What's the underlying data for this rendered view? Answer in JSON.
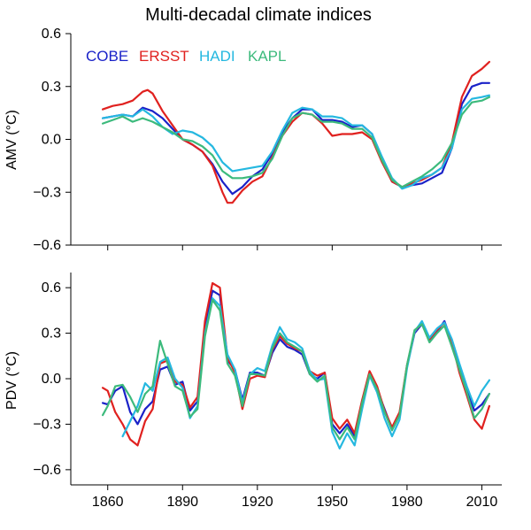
{
  "chart_data": {
    "title": "Multi-decadal climate indices",
    "type": "line",
    "legend_placement": "top-left",
    "grid": false,
    "colors": {
      "COBE": "#1a22c8",
      "ERSST": "#e0211f",
      "HADI": "#25b8e0",
      "KAPL": "#3cba7c"
    },
    "xlim": [
      1853,
      2018
    ],
    "xticks": [
      1860,
      1890,
      1920,
      1950,
      1980,
      2010
    ],
    "xticklabels": [
      "1860",
      "1890",
      "1920",
      "1950",
      "1980",
      "2010"
    ],
    "panels": [
      {
        "ylabel": "AMV (°C)",
        "ylim": [
          -0.6,
          0.6
        ],
        "yticks": [
          0.6,
          0.3,
          0.0,
          -0.3,
          -0.6
        ],
        "yticklabels": [
          "0.6",
          "0.3",
          "0.0",
          "−0.3",
          "−0.6"
        ],
        "series": [
          {
            "name": "COBE",
            "x": [
              1858,
              1862,
              1866,
              1870,
              1874,
              1878,
              1882,
              1886,
              1890,
              1894,
              1898,
              1902,
              1906,
              1910,
              1914,
              1918,
              1922,
              1926,
              1930,
              1934,
              1938,
              1942,
              1946,
              1950,
              1954,
              1958,
              1962,
              1966,
              1970,
              1974,
              1978,
              1982,
              1986,
              1990,
              1994,
              1998,
              2002,
              2006,
              2010,
              2013
            ],
            "y": [
              0.12,
              0.13,
              0.14,
              0.13,
              0.18,
              0.16,
              0.12,
              0.06,
              0.0,
              -0.03,
              -0.07,
              -0.14,
              -0.24,
              -0.31,
              -0.27,
              -0.21,
              -0.17,
              -0.08,
              0.04,
              0.12,
              0.17,
              0.17,
              0.11,
              0.11,
              0.1,
              0.07,
              0.08,
              0.03,
              -0.12,
              -0.24,
              -0.27,
              -0.26,
              -0.25,
              -0.22,
              -0.19,
              -0.05,
              0.2,
              0.3,
              0.32,
              0.32
            ]
          },
          {
            "name": "ERSST",
            "x": [
              1858,
              1862,
              1866,
              1870,
              1874,
              1876,
              1878,
              1882,
              1886,
              1890,
              1894,
              1898,
              1902,
              1906,
              1908,
              1910,
              1914,
              1918,
              1922,
              1926,
              1930,
              1934,
              1938,
              1942,
              1946,
              1950,
              1954,
              1958,
              1962,
              1966,
              1970,
              1974,
              1978,
              1982,
              1986,
              1990,
              1994,
              1998,
              2002,
              2006,
              2010,
              2013
            ],
            "y": [
              0.17,
              0.19,
              0.2,
              0.22,
              0.27,
              0.28,
              0.26,
              0.16,
              0.08,
              0.0,
              -0.03,
              -0.07,
              -0.15,
              -0.3,
              -0.36,
              -0.36,
              -0.29,
              -0.24,
              -0.21,
              -0.1,
              0.02,
              0.1,
              0.15,
              0.14,
              0.09,
              0.02,
              0.03,
              0.03,
              0.04,
              0.0,
              -0.13,
              -0.24,
              -0.27,
              -0.25,
              -0.23,
              -0.2,
              -0.16,
              -0.02,
              0.24,
              0.36,
              0.4,
              0.44
            ]
          },
          {
            "name": "HADI",
            "x": [
              1858,
              1862,
              1866,
              1870,
              1874,
              1878,
              1882,
              1886,
              1890,
              1894,
              1898,
              1902,
              1906,
              1910,
              1914,
              1918,
              1922,
              1926,
              1930,
              1934,
              1938,
              1942,
              1946,
              1950,
              1954,
              1958,
              1962,
              1966,
              1970,
              1974,
              1978,
              1982,
              1986,
              1990,
              1994,
              1998,
              2002,
              2006,
              2010,
              2013
            ],
            "y": [
              0.12,
              0.13,
              0.14,
              0.13,
              0.17,
              0.13,
              0.07,
              0.03,
              0.05,
              0.04,
              0.01,
              -0.04,
              -0.13,
              -0.18,
              -0.17,
              -0.16,
              -0.15,
              -0.07,
              0.05,
              0.15,
              0.18,
              0.17,
              0.13,
              0.13,
              0.12,
              0.08,
              0.08,
              0.03,
              -0.1,
              -0.22,
              -0.28,
              -0.26,
              -0.22,
              -0.2,
              -0.16,
              -0.05,
              0.17,
              0.23,
              0.24,
              0.25
            ]
          },
          {
            "name": "KAPL",
            "x": [
              1858,
              1862,
              1866,
              1870,
              1874,
              1878,
              1882,
              1886,
              1890,
              1894,
              1898,
              1902,
              1906,
              1910,
              1914,
              1918,
              1922,
              1926,
              1930,
              1934,
              1938,
              1942,
              1946,
              1950,
              1954,
              1958,
              1962,
              1966,
              1970,
              1974,
              1978,
              1982,
              1986,
              1990,
              1994,
              1998,
              2002,
              2006,
              2010,
              2013
            ],
            "y": [
              0.09,
              0.11,
              0.13,
              0.1,
              0.12,
              0.1,
              0.07,
              0.04,
              0.0,
              -0.01,
              -0.04,
              -0.09,
              -0.18,
              -0.22,
              -0.22,
              -0.21,
              -0.19,
              -0.11,
              0.02,
              0.12,
              0.15,
              0.14,
              0.1,
              0.1,
              0.09,
              0.06,
              0.06,
              0.01,
              -0.12,
              -0.23,
              -0.27,
              -0.24,
              -0.21,
              -0.17,
              -0.12,
              -0.02,
              0.14,
              0.21,
              0.22,
              0.24
            ]
          }
        ]
      },
      {
        "ylabel": "PDV (°C)",
        "ylim": [
          -0.7,
          0.7
        ],
        "yticks": [
          0.6,
          0.3,
          0.0,
          -0.3,
          -0.6
        ],
        "yticklabels": [
          "0.6",
          "0.3",
          "0.0",
          "−0.3",
          "−0.6"
        ],
        "series": [
          {
            "name": "COBE",
            "x": [
              1858,
              1860,
              1863,
              1866,
              1869,
              1872,
              1875,
              1878,
              1881,
              1884,
              1887,
              1890,
              1893,
              1896,
              1899,
              1902,
              1905,
              1908,
              1911,
              1914,
              1917,
              1920,
              1923,
              1926,
              1929,
              1932,
              1935,
              1938,
              1941,
              1944,
              1947,
              1950,
              1953,
              1956,
              1959,
              1962,
              1965,
              1968,
              1971,
              1974,
              1977,
              1980,
              1983,
              1986,
              1989,
              1992,
              1995,
              1998,
              2001,
              2004,
              2007,
              2010,
              2013
            ],
            "y": [
              -0.16,
              -0.17,
              -0.08,
              -0.05,
              -0.22,
              -0.3,
              -0.2,
              -0.15,
              0.06,
              0.08,
              -0.04,
              -0.02,
              -0.21,
              -0.15,
              0.35,
              0.58,
              0.55,
              0.12,
              0.06,
              -0.14,
              0.04,
              0.04,
              0.02,
              0.17,
              0.26,
              0.21,
              0.19,
              0.16,
              0.03,
              0.0,
              0.04,
              -0.3,
              -0.36,
              -0.3,
              -0.38,
              -0.16,
              0.03,
              -0.07,
              -0.2,
              -0.33,
              -0.24,
              0.08,
              0.3,
              0.36,
              0.25,
              0.31,
              0.38,
              0.24,
              0.07,
              -0.07,
              -0.21,
              -0.17,
              -0.1
            ]
          },
          {
            "name": "ERSST",
            "x": [
              1858,
              1860,
              1863,
              1866,
              1869,
              1872,
              1875,
              1878,
              1881,
              1884,
              1887,
              1890,
              1893,
              1896,
              1899,
              1902,
              1905,
              1908,
              1911,
              1914,
              1917,
              1920,
              1923,
              1926,
              1929,
              1932,
              1935,
              1938,
              1941,
              1944,
              1947,
              1950,
              1953,
              1956,
              1959,
              1962,
              1965,
              1968,
              1971,
              1974,
              1977,
              1980,
              1983,
              1986,
              1989,
              1992,
              1995,
              1998,
              2001,
              2004,
              2007,
              2010,
              2013
            ],
            "y": [
              -0.06,
              -0.08,
              -0.22,
              -0.3,
              -0.4,
              -0.44,
              -0.28,
              -0.2,
              0.1,
              0.12,
              -0.02,
              -0.04,
              -0.19,
              -0.12,
              0.38,
              0.63,
              0.6,
              0.14,
              0.04,
              -0.2,
              0.0,
              0.02,
              0.01,
              0.19,
              0.28,
              0.23,
              0.2,
              0.18,
              0.05,
              0.02,
              0.04,
              -0.26,
              -0.33,
              -0.27,
              -0.36,
              -0.14,
              0.05,
              -0.05,
              -0.21,
              -0.32,
              -0.22,
              0.09,
              0.31,
              0.37,
              0.26,
              0.32,
              0.37,
              0.24,
              0.04,
              -0.11,
              -0.27,
              -0.33,
              -0.18
            ]
          },
          {
            "name": "HADI",
            "x": [
              1866,
              1869,
              1872,
              1875,
              1878,
              1881,
              1884,
              1887,
              1890,
              1893,
              1896,
              1899,
              1902,
              1905,
              1908,
              1911,
              1914,
              1917,
              1920,
              1923,
              1926,
              1929,
              1932,
              1935,
              1938,
              1941,
              1944,
              1947,
              1950,
              1953,
              1956,
              1959,
              1962,
              1965,
              1968,
              1971,
              1974,
              1977,
              1980,
              1983,
              1986,
              1989,
              1992,
              1995,
              1998,
              2001,
              2004,
              2007,
              2010,
              2013
            ],
            "y": [
              -0.38,
              -0.28,
              -0.18,
              -0.03,
              -0.08,
              0.11,
              0.14,
              0.0,
              -0.06,
              -0.26,
              -0.18,
              0.3,
              0.53,
              0.48,
              0.16,
              0.06,
              -0.16,
              0.03,
              0.07,
              0.05,
              0.22,
              0.34,
              0.26,
              0.24,
              0.2,
              0.05,
              -0.01,
              0.0,
              -0.35,
              -0.46,
              -0.36,
              -0.44,
              -0.2,
              0.02,
              -0.09,
              -0.26,
              -0.38,
              -0.27,
              0.07,
              0.31,
              0.38,
              0.27,
              0.33,
              0.37,
              0.26,
              0.1,
              -0.05,
              -0.18,
              -0.08,
              -0.01
            ]
          },
          {
            "name": "KAPL",
            "x": [
              1858,
              1860,
              1863,
              1866,
              1869,
              1872,
              1875,
              1878,
              1881,
              1884,
              1887,
              1890,
              1893,
              1896,
              1899,
              1902,
              1905,
              1908,
              1911,
              1914,
              1917,
              1920,
              1923,
              1926,
              1929,
              1932,
              1935,
              1938,
              1941,
              1944,
              1947,
              1950,
              1953,
              1956,
              1959,
              1962,
              1965,
              1968,
              1971,
              1974,
              1977,
              1980,
              1983,
              1986,
              1989,
              1992,
              1995,
              1998,
              2001,
              2004,
              2007,
              2010,
              2013
            ],
            "y": [
              -0.24,
              -0.18,
              -0.05,
              -0.04,
              -0.12,
              -0.22,
              -0.1,
              -0.05,
              0.25,
              0.1,
              -0.05,
              -0.08,
              -0.25,
              -0.2,
              0.28,
              0.52,
              0.45,
              0.1,
              0.02,
              -0.18,
              0.03,
              0.03,
              0.02,
              0.2,
              0.3,
              0.24,
              0.21,
              0.18,
              0.03,
              -0.02,
              0.02,
              -0.32,
              -0.4,
              -0.32,
              -0.4,
              -0.16,
              0.03,
              -0.07,
              -0.22,
              -0.34,
              -0.24,
              0.09,
              0.32,
              0.36,
              0.24,
              0.3,
              0.35,
              0.21,
              0.06,
              -0.09,
              -0.26,
              -0.2,
              -0.1
            ]
          }
        ]
      }
    ]
  }
}
